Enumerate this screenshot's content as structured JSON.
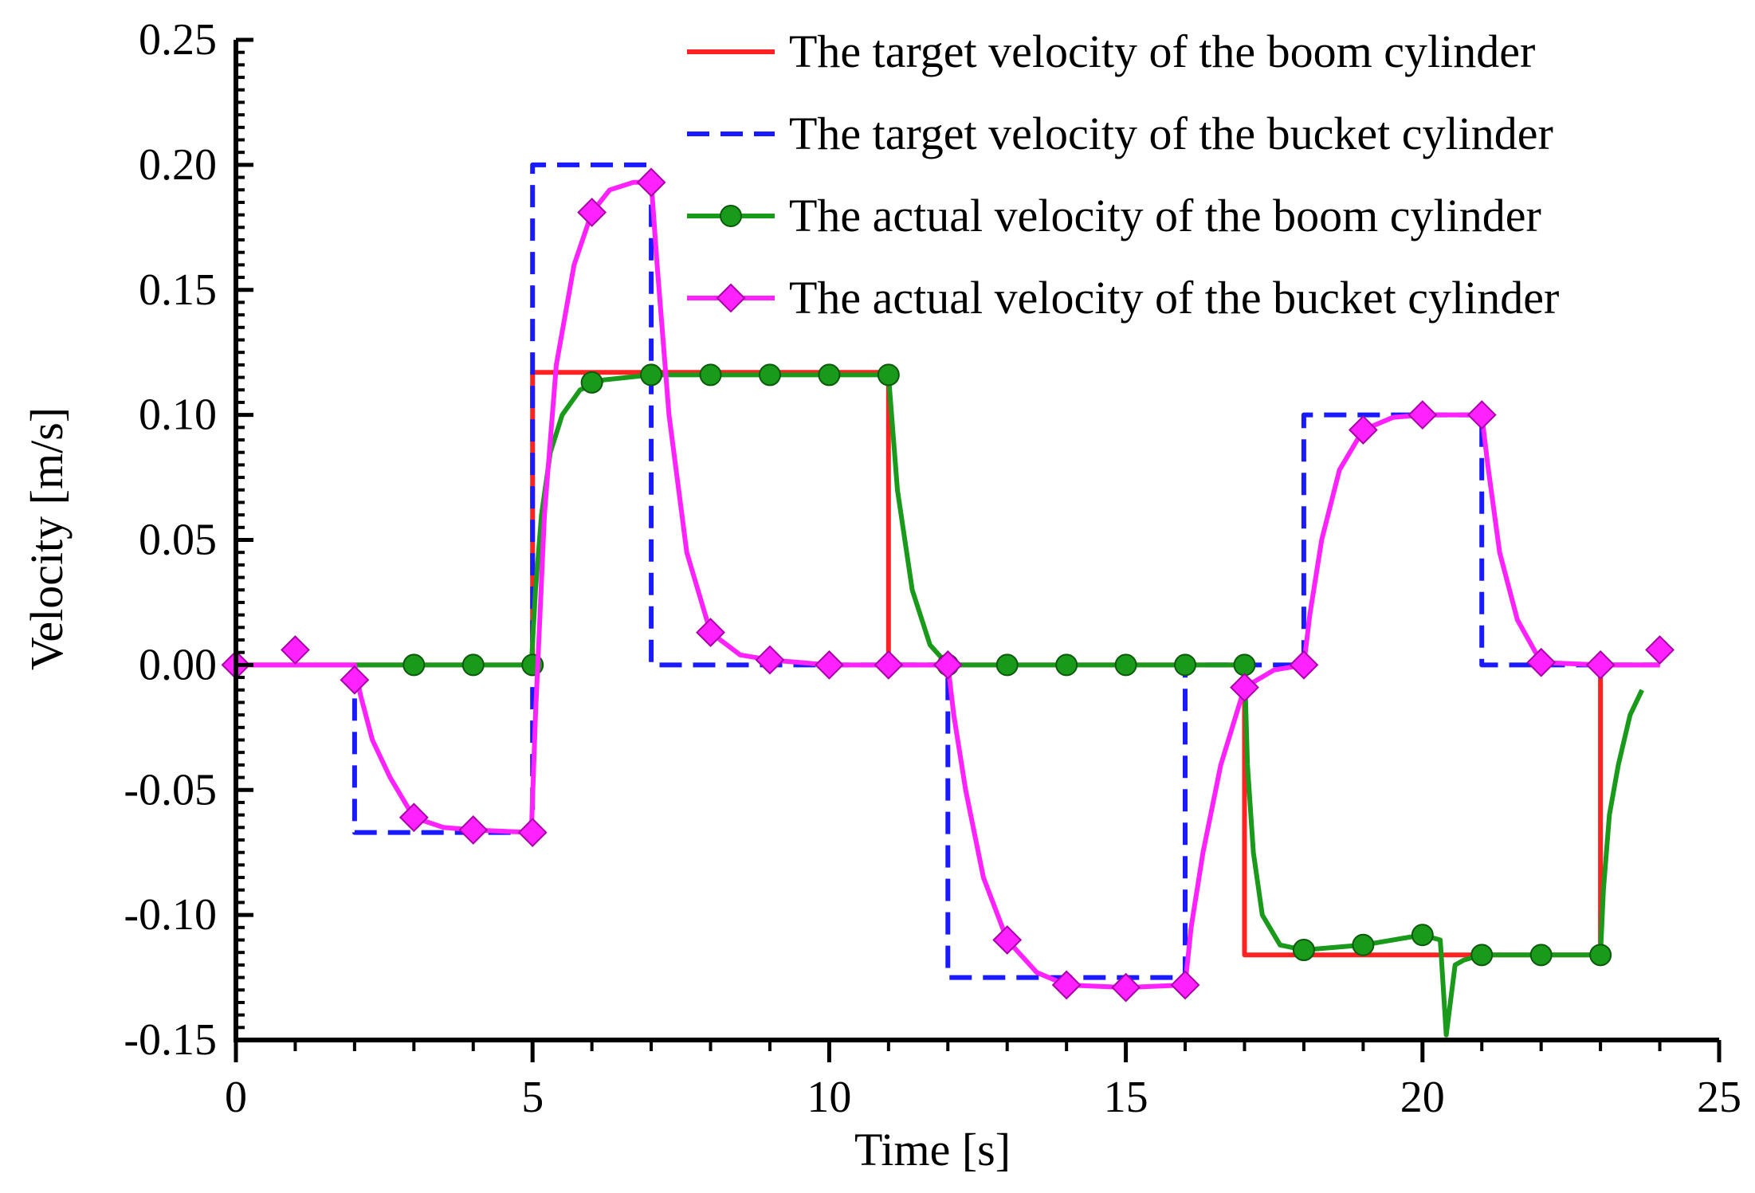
{
  "chart_data": {
    "type": "line",
    "title": "",
    "xlabel": "Time [s]",
    "ylabel": "Velocity [m/s]",
    "xlim": [
      0,
      25
    ],
    "ylim": [
      -0.15,
      0.25
    ],
    "xticks": [
      0,
      5,
      10,
      15,
      20,
      25
    ],
    "xtick_labels": [
      "0",
      "5",
      "10",
      "15",
      "20",
      "25"
    ],
    "yticks": [
      -0.15,
      -0.1,
      -0.05,
      0.0,
      0.05,
      0.1,
      0.15,
      0.2,
      0.25
    ],
    "ytick_labels": [
      "-0.15",
      "-0.10",
      "-0.05",
      "0.00",
      "0.05",
      "0.10",
      "0.15",
      "0.20",
      "0.25"
    ],
    "grid": false,
    "legend_position": "top-right",
    "series": [
      {
        "name": "The target velocity of the boom cylinder",
        "color": "#ff2222",
        "style": "solid",
        "marker": "none",
        "x": [
          0,
          5,
          5,
          11,
          11,
          17,
          17,
          23,
          23,
          24
        ],
        "y": [
          0,
          0,
          0.117,
          0.117,
          0,
          0,
          -0.116,
          -0.116,
          0,
          0
        ]
      },
      {
        "name": "The target velocity of the bucket cylinder",
        "color": "#1a1aff",
        "style": "dashed",
        "marker": "none",
        "x": [
          2,
          2,
          5,
          5,
          7,
          7,
          12,
          12,
          16,
          16,
          18,
          18,
          21,
          21,
          24
        ],
        "y": [
          0,
          -0.067,
          -0.067,
          0.2,
          0.2,
          0,
          0,
          -0.125,
          -0.125,
          0,
          0,
          0.1,
          0.1,
          0,
          0
        ]
      },
      {
        "name": "The actual velocity of the boom cylinder",
        "color": "#1a9a1a",
        "style": "solid",
        "marker": "circle",
        "x": [
          2,
          3,
          4,
          4.98,
          5.05,
          5.15,
          5.3,
          5.5,
          5.8,
          6.2,
          7,
          8,
          9,
          10,
          11,
          11.15,
          11.4,
          11.7,
          12,
          13,
          14,
          15,
          16,
          17,
          17.05,
          17.15,
          17.3,
          17.6,
          18,
          19,
          20,
          20.3,
          20.4,
          20.55,
          20.7,
          21,
          22,
          23,
          23.05,
          23.15,
          23.3,
          23.5,
          23.7
        ],
        "y": [
          0,
          0,
          0,
          0,
          0.03,
          0.06,
          0.085,
          0.1,
          0.11,
          0.114,
          0.116,
          0.116,
          0.116,
          0.116,
          0.116,
          0.07,
          0.03,
          0.008,
          0,
          0,
          0,
          0,
          0,
          0,
          -0.04,
          -0.075,
          -0.1,
          -0.112,
          -0.114,
          -0.112,
          -0.108,
          -0.11,
          -0.148,
          -0.12,
          -0.118,
          -0.116,
          -0.116,
          -0.116,
          -0.09,
          -0.06,
          -0.04,
          -0.02,
          -0.01
        ],
        "marker_x": [
          3,
          4,
          5,
          6,
          7,
          8,
          9,
          10,
          11,
          12,
          13,
          14,
          15,
          16,
          17,
          18,
          19,
          20,
          21,
          22,
          23
        ],
        "marker_y": [
          0,
          0,
          0,
          0.113,
          0.116,
          0.116,
          0.116,
          0.116,
          0.116,
          0,
          0,
          0,
          0,
          0,
          0,
          -0.114,
          -0.112,
          -0.108,
          -0.116,
          -0.116,
          -0.116
        ]
      },
      {
        "name": "The actual velocity of the bucket cylinder",
        "color": "#ff22ff",
        "style": "solid",
        "marker": "diamond",
        "x": [
          0,
          2,
          2.1,
          2.3,
          2.6,
          3,
          3.5,
          4,
          4.98,
          5.05,
          5.2,
          5.4,
          5.7,
          6,
          6.3,
          6.7,
          7,
          7.1,
          7.3,
          7.6,
          8,
          8.5,
          9,
          10,
          11,
          12,
          12.1,
          12.3,
          12.6,
          13,
          13.5,
          14,
          15,
          16,
          16.1,
          16.3,
          16.6,
          17,
          17.5,
          18,
          18.1,
          18.3,
          18.6,
          19,
          19.5,
          20,
          21,
          21.1,
          21.3,
          21.6,
          22,
          23,
          23.5,
          24
        ],
        "y": [
          0,
          0,
          -0.012,
          -0.03,
          -0.045,
          -0.061,
          -0.065,
          -0.066,
          -0.067,
          -0.02,
          0.06,
          0.12,
          0.16,
          0.181,
          0.19,
          0.193,
          0.193,
          0.16,
          0.1,
          0.045,
          0.013,
          0.004,
          0.002,
          0,
          0,
          0,
          -0.02,
          -0.05,
          -0.085,
          -0.11,
          -0.123,
          -0.128,
          -0.129,
          -0.128,
          -0.105,
          -0.075,
          -0.04,
          -0.009,
          -0.002,
          0,
          0.02,
          0.05,
          0.078,
          0.094,
          0.099,
          0.1,
          0.1,
          0.08,
          0.045,
          0.018,
          0.001,
          0,
          0,
          0
        ],
        "marker_x": [
          0,
          1,
          2,
          3,
          4,
          5,
          6,
          7,
          8,
          9,
          10,
          11,
          12,
          13,
          14,
          15,
          16,
          17,
          18,
          19,
          20,
          21,
          22,
          23,
          24
        ],
        "marker_y": [
          0,
          0.006,
          -0.006,
          -0.061,
          -0.066,
          -0.067,
          0.181,
          0.193,
          0.013,
          0.002,
          0,
          0,
          0,
          -0.11,
          -0.128,
          -0.129,
          -0.128,
          -0.009,
          0,
          0.094,
          0.1,
          0.1,
          0.001,
          0,
          0.006
        ]
      }
    ]
  }
}
